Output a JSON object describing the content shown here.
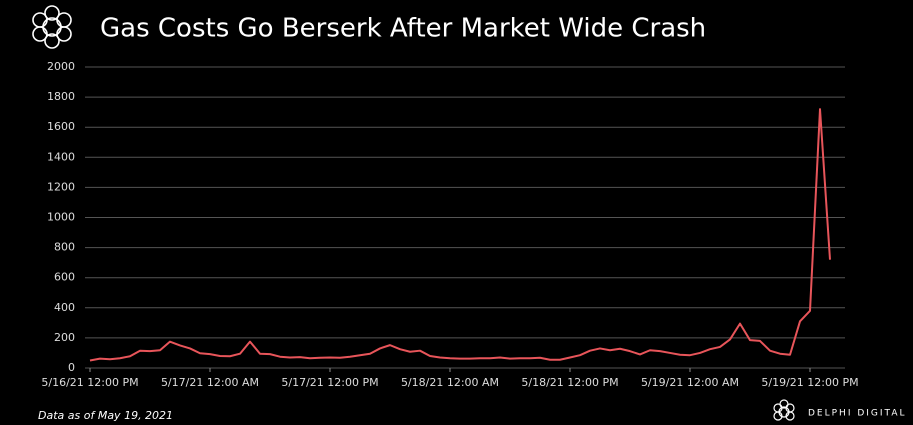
{
  "chart_data": {
    "type": "line",
    "title": "Gas Costs Go Berserk After Market Wide Crash",
    "note": "Data as of May 19, 2021",
    "brand": "DELPHI DIGITAL",
    "x": [
      "2021-05-16T12:00",
      "2021-05-16T13:00",
      "2021-05-16T14:00",
      "2021-05-16T15:00",
      "2021-05-16T16:00",
      "2021-05-16T17:00",
      "2021-05-16T18:00",
      "2021-05-16T19:00",
      "2021-05-16T20:00",
      "2021-05-16T21:00",
      "2021-05-16T22:00",
      "2021-05-16T23:00",
      "2021-05-17T00:00",
      "2021-05-17T01:00",
      "2021-05-17T02:00",
      "2021-05-17T03:00",
      "2021-05-17T04:00",
      "2021-05-17T05:00",
      "2021-05-17T06:00",
      "2021-05-17T07:00",
      "2021-05-17T08:00",
      "2021-05-17T09:00",
      "2021-05-17T10:00",
      "2021-05-17T11:00",
      "2021-05-17T12:00",
      "2021-05-17T13:00",
      "2021-05-17T14:00",
      "2021-05-17T15:00",
      "2021-05-17T16:00",
      "2021-05-17T17:00",
      "2021-05-17T18:00",
      "2021-05-17T19:00",
      "2021-05-17T20:00",
      "2021-05-17T21:00",
      "2021-05-17T22:00",
      "2021-05-17T23:00",
      "2021-05-18T00:00",
      "2021-05-18T01:00",
      "2021-05-18T02:00",
      "2021-05-18T03:00",
      "2021-05-18T04:00",
      "2021-05-18T05:00",
      "2021-05-18T06:00",
      "2021-05-18T07:00",
      "2021-05-18T08:00",
      "2021-05-18T09:00",
      "2021-05-18T10:00",
      "2021-05-18T11:00",
      "2021-05-18T12:00",
      "2021-05-18T13:00",
      "2021-05-18T14:00",
      "2021-05-18T15:00",
      "2021-05-18T16:00",
      "2021-05-18T17:00",
      "2021-05-18T18:00",
      "2021-05-18T19:00",
      "2021-05-18T20:00",
      "2021-05-18T21:00",
      "2021-05-18T22:00",
      "2021-05-18T23:00",
      "2021-05-19T00:00",
      "2021-05-19T01:00",
      "2021-05-19T02:00",
      "2021-05-19T03:00",
      "2021-05-19T04:00",
      "2021-05-19T05:00",
      "2021-05-19T06:00",
      "2021-05-19T07:00",
      "2021-05-19T08:00",
      "2021-05-19T09:00",
      "2021-05-19T10:00",
      "2021-05-19T11:00",
      "2021-05-19T12:00",
      "2021-05-19T13:00",
      "2021-05-19T14:00"
    ],
    "series": [
      {
        "name": "Gas",
        "color": "#e8555a",
        "values": [
          50,
          62,
          58,
          65,
          78,
          115,
          112,
          118,
          175,
          150,
          130,
          98,
          92,
          80,
          78,
          95,
          175,
          95,
          92,
          75,
          70,
          72,
          65,
          68,
          70,
          68,
          75,
          85,
          95,
          130,
          152,
          125,
          108,
          115,
          80,
          70,
          65,
          62,
          62,
          65,
          65,
          70,
          62,
          65,
          65,
          68,
          55,
          55,
          70,
          85,
          115,
          130,
          118,
          128,
          112,
          90,
          118,
          112,
          100,
          88,
          85,
          100,
          125,
          140,
          190,
          295,
          185,
          180,
          115,
          95,
          88,
          310,
          380,
          1720,
          720
        ]
      }
    ],
    "xlim": [
      "2021-05-16T11:30",
      "2021-05-19T15:30"
    ],
    "xticks": [
      {
        "value": "2021-05-16T12:00",
        "label": "5/16/21 12:00 PM"
      },
      {
        "value": "2021-05-17T00:00",
        "label": "5/17/21 12:00 AM"
      },
      {
        "value": "2021-05-17T12:00",
        "label": "5/17/21 12:00 PM"
      },
      {
        "value": "2021-05-18T00:00",
        "label": "5/18/21 12:00 AM"
      },
      {
        "value": "2021-05-18T12:00",
        "label": "5/18/21 12:00 PM"
      },
      {
        "value": "2021-05-19T00:00",
        "label": "5/19/21 12:00 AM"
      },
      {
        "value": "2021-05-19T12:00",
        "label": "5/19/21 12:00 PM"
      }
    ],
    "ylim": [
      0,
      2000
    ],
    "yticks": [
      0,
      200,
      400,
      600,
      800,
      1000,
      1200,
      1400,
      1600,
      1800,
      2000
    ],
    "grid": true
  }
}
